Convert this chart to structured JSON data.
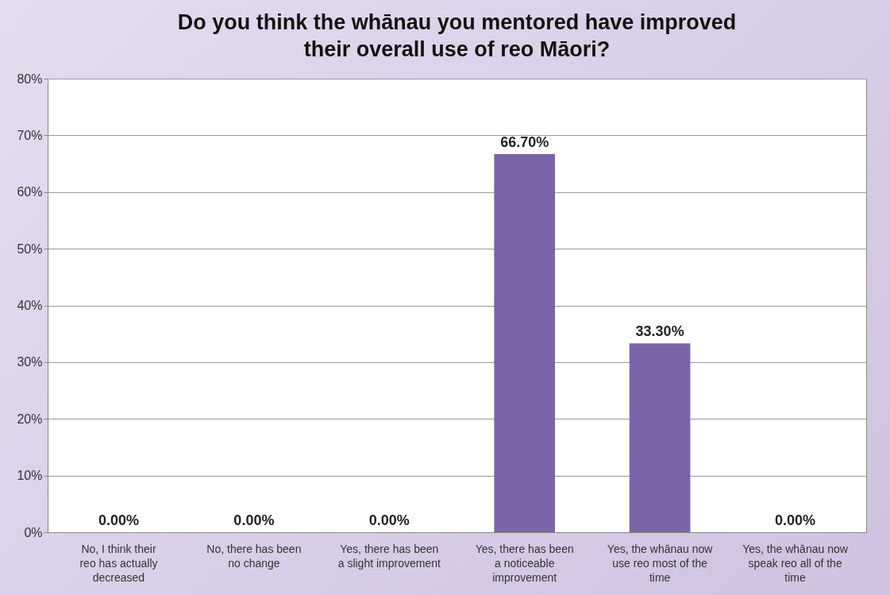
{
  "chart_data": {
    "type": "bar",
    "title": "Do you think the whānau you mentored have improved their overall use of reo Māori?",
    "categories": [
      "No, I think their reo has actually decreased",
      "No, there has been no change",
      "Yes, there has been a slight improvement",
      "Yes, there has been a noticeable improvement",
      "Yes, the whānau now use reo most of the time",
      "Yes, the whānau now speak reo all of the time"
    ],
    "values": [
      0,
      0,
      0,
      66.7,
      33.3,
      0
    ],
    "value_labels": [
      "0.00%",
      "0.00%",
      "0.00%",
      "66.70%",
      "33.30%",
      "0.00%"
    ],
    "color": "#7b64a8",
    "ylim": [
      0,
      80
    ],
    "yticks": [
      {
        "value": 0,
        "label": "0%"
      },
      {
        "value": 10,
        "label": "10%"
      },
      {
        "value": 20,
        "label": "20%"
      },
      {
        "value": 30,
        "label": "30%"
      },
      {
        "value": 40,
        "label": "40%"
      },
      {
        "value": 50,
        "label": "50%"
      },
      {
        "value": 60,
        "label": "60%"
      },
      {
        "value": 70,
        "label": "70%"
      },
      {
        "value": 80,
        "label": "80%"
      }
    ],
    "grid": "y"
  }
}
